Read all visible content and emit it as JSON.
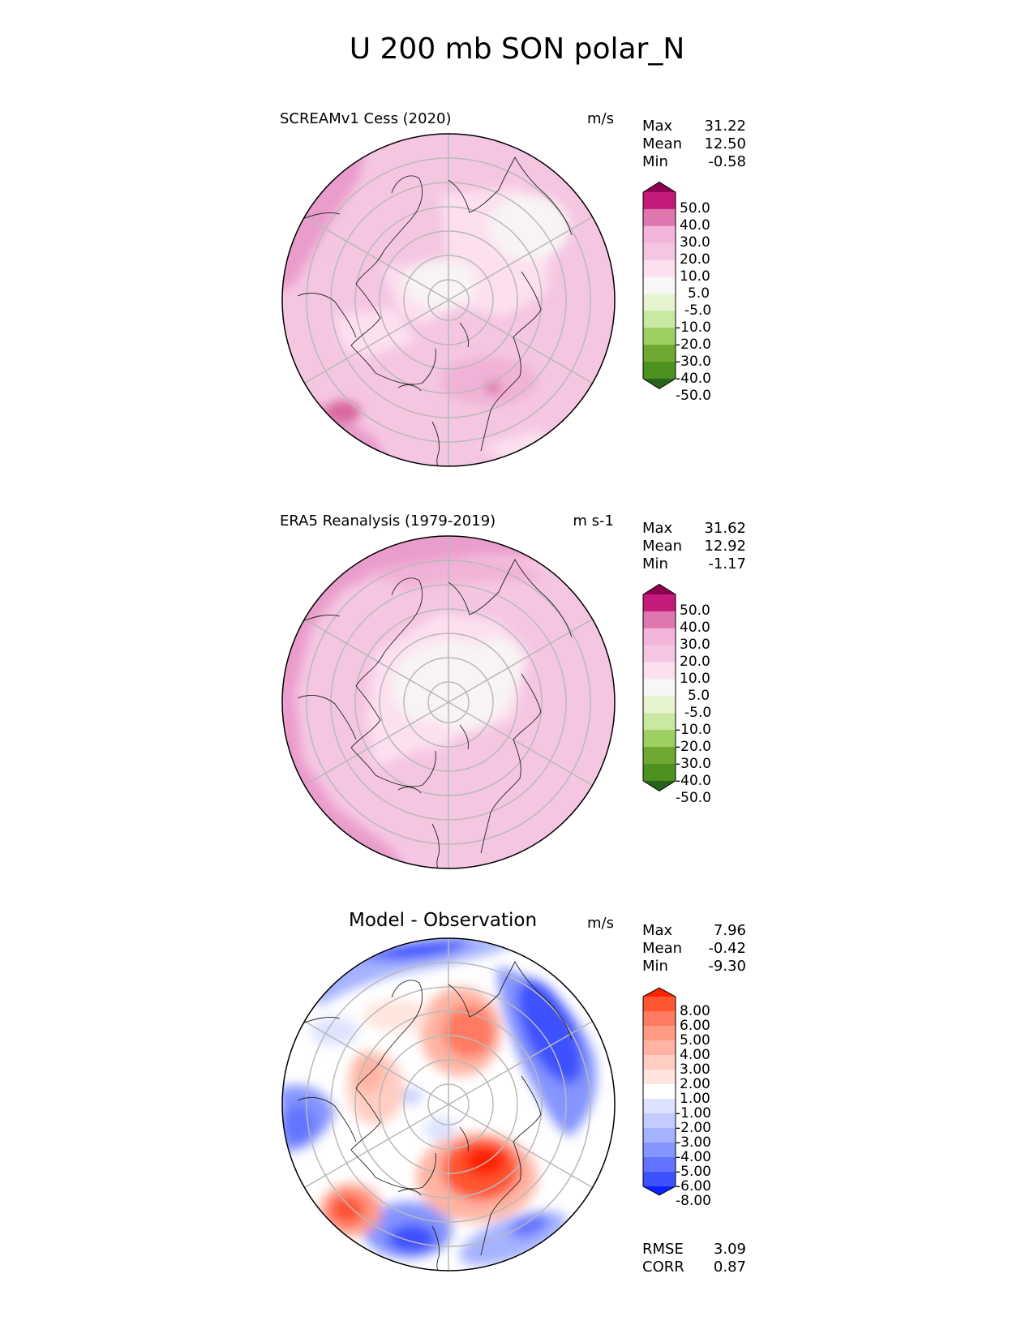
{
  "title": "U 200 mb SON polar_N",
  "chart_data": [
    {
      "type": "heatmap",
      "projection": "north polar stereographic",
      "title": "SCREAMv1 Cess (2020)",
      "units": "m/s",
      "stats": [
        {
          "label": "Max",
          "value": "31.22"
        },
        {
          "label": "Mean",
          "value": "12.50"
        },
        {
          "label": "Min",
          "value": "-0.58"
        }
      ],
      "colorbar": {
        "ticks": [
          "50.0",
          "40.0",
          "30.0",
          "20.0",
          "10.0",
          "5.0",
          "-5.0",
          "-10.0",
          "-20.0",
          "-30.0",
          "-40.0",
          "-50.0"
        ],
        "colors": [
          "#8e0152",
          "#c51b7d",
          "#de77ae",
          "#f1b6da",
          "#f5c6e2",
          "#fde0ef",
          "#f7f7f7",
          "#e6f5d0",
          "#c9e8a3",
          "#9dcf62",
          "#6ea832",
          "#4d9221",
          "#276419"
        ],
        "extend": "both"
      }
    },
    {
      "type": "heatmap",
      "projection": "north polar stereographic",
      "title": "ERA5 Reanalysis (1979-2019)",
      "units": "m s-1",
      "stats": [
        {
          "label": "Max",
          "value": "31.62"
        },
        {
          "label": "Mean",
          "value": "12.92"
        },
        {
          "label": "Min",
          "value": "-1.17"
        }
      ],
      "colorbar": {
        "ticks": [
          "50.0",
          "40.0",
          "30.0",
          "20.0",
          "10.0",
          "5.0",
          "-5.0",
          "-10.0",
          "-20.0",
          "-30.0",
          "-40.0",
          "-50.0"
        ],
        "colors": [
          "#8e0152",
          "#c51b7d",
          "#de77ae",
          "#f1b6da",
          "#f5c6e2",
          "#fde0ef",
          "#f7f7f7",
          "#e6f5d0",
          "#c9e8a3",
          "#9dcf62",
          "#6ea832",
          "#4d9221",
          "#276419"
        ],
        "extend": "both"
      }
    },
    {
      "type": "heatmap",
      "projection": "north polar stereographic",
      "title": "Model - Observation",
      "units": "m/s",
      "stats": [
        {
          "label": "Max",
          "value": "7.96"
        },
        {
          "label": "Mean",
          "value": "-0.42"
        },
        {
          "label": "Min",
          "value": "-9.30"
        }
      ],
      "extra_stats": [
        {
          "label": "RMSE",
          "value": "3.09"
        },
        {
          "label": "CORR",
          "value": "0.87"
        }
      ],
      "colorbar": {
        "ticks": [
          "8.00",
          "6.00",
          "5.00",
          "4.00",
          "3.00",
          "2.00",
          "1.00",
          "-1.00",
          "-2.00",
          "-3.00",
          "-4.00",
          "-5.00",
          "-6.00",
          "-8.00"
        ],
        "colors": [
          "#ff2200",
          "#ff5533",
          "#ff7a60",
          "#ff9a85",
          "#ffb4a3",
          "#ffcdc1",
          "#ffe5de",
          "#ffffff",
          "#dde3ff",
          "#c3ccff",
          "#a5b2ff",
          "#8595ff",
          "#6274ff",
          "#3e51ff",
          "#0a22ff"
        ],
        "extend": "both"
      }
    }
  ]
}
